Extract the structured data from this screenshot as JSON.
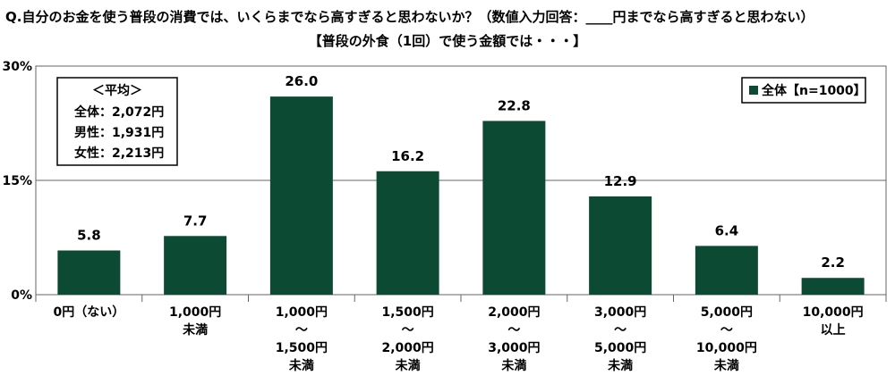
{
  "chart_data": {
    "type": "bar",
    "title": "Q.自分のお金を使う普段の消費では、いくらまでなら高すぎると思わないか？（数値入力回答：____円までなら高すぎると思わない）",
    "subtitle": "【普段の外食（1回）で使う金額では・・・】",
    "categories": [
      [
        "0円（ない）"
      ],
      [
        "1,000円",
        "未満"
      ],
      [
        "1,000円",
        "～",
        "1,500円",
        "未満"
      ],
      [
        "1,500円",
        "～",
        "2,000円",
        "未満"
      ],
      [
        "2,000円",
        "～",
        "3,000円",
        "未満"
      ],
      [
        "3,000円",
        "～",
        "5,000円",
        "未満"
      ],
      [
        "5,000円",
        "～",
        "10,000円",
        "未満"
      ],
      [
        "10,000円",
        "以上"
      ]
    ],
    "series": [
      {
        "name": "全体【n=1000】",
        "values": [
          5.8,
          7.7,
          26.0,
          16.2,
          22.8,
          12.9,
          6.4,
          2.2
        ]
      }
    ],
    "value_labels": [
      "5.8",
      "7.7",
      "26.0",
      "16.2",
      "22.8",
      "12.9",
      "6.4",
      "2.2"
    ],
    "ylim": [
      0,
      30
    ],
    "yticks": [
      0,
      15,
      30
    ],
    "ytick_labels": [
      "0%",
      "15%",
      "30%"
    ],
    "grid": true,
    "legend_position": "top-right",
    "bar_color": "#0d4a33",
    "average_box": {
      "title": "＜平均＞",
      "lines": [
        "全体：2,072円",
        "男性：1,931円",
        "女性：2,213円"
      ]
    }
  }
}
